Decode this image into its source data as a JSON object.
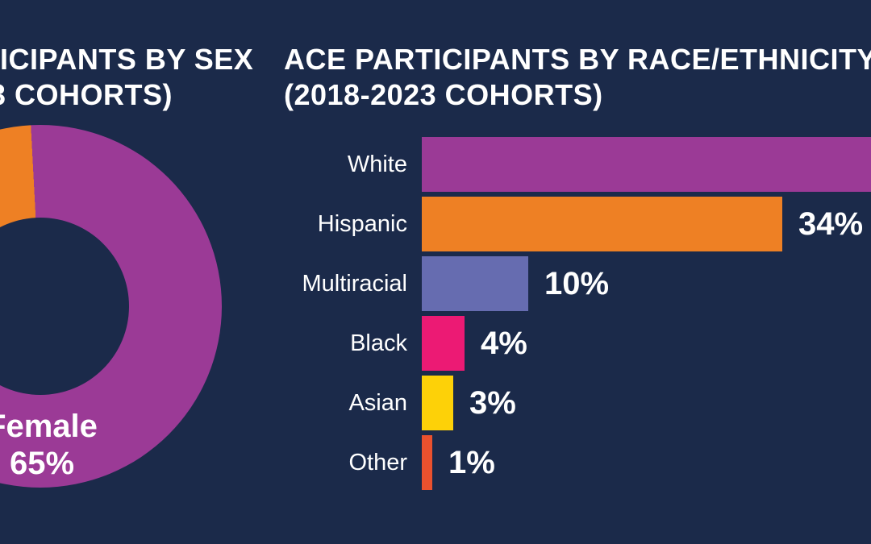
{
  "background": "#1b2a4a",
  "text_color": "#ffffff",
  "image_cropped": true,
  "chart_data": [
    {
      "type": "pie",
      "subtype": "donut",
      "title_visible_line1": "ICIPANTS BY SEX",
      "title_visible_line2": "3 COHORTS)",
      "title_cropped_at_left_edge": true,
      "legend_position": "on-slice",
      "segments": [
        {
          "label": "Female",
          "value": 65,
          "value_label": "65%",
          "color": "#9b3a96"
        },
        {
          "label": "",
          "value": 35,
          "value_label": "",
          "color": "#ee8024"
        }
      ]
    },
    {
      "type": "bar",
      "orientation": "horizontal",
      "title_line1": "ACE PARTICIPANTS BY RACE/ETHNICITY",
      "title_line2": "(2018-2023 COHORTS)",
      "categories": [
        "White",
        "Hispanic",
        "Multiracial",
        "Black",
        "Asian",
        "Other"
      ],
      "values": [
        null,
        34,
        10,
        4,
        3,
        1
      ],
      "value_labels": [
        "",
        "34%",
        "10%",
        "4%",
        "3%",
        "1%"
      ],
      "bar_colors": [
        "#9b3a96",
        "#ee8024",
        "#666cb0",
        "#ec1a74",
        "#fdd108",
        "#ea512e"
      ],
      "white_bar_cropped_at_right_edge": true,
      "grid": false,
      "axis": "none"
    }
  ]
}
